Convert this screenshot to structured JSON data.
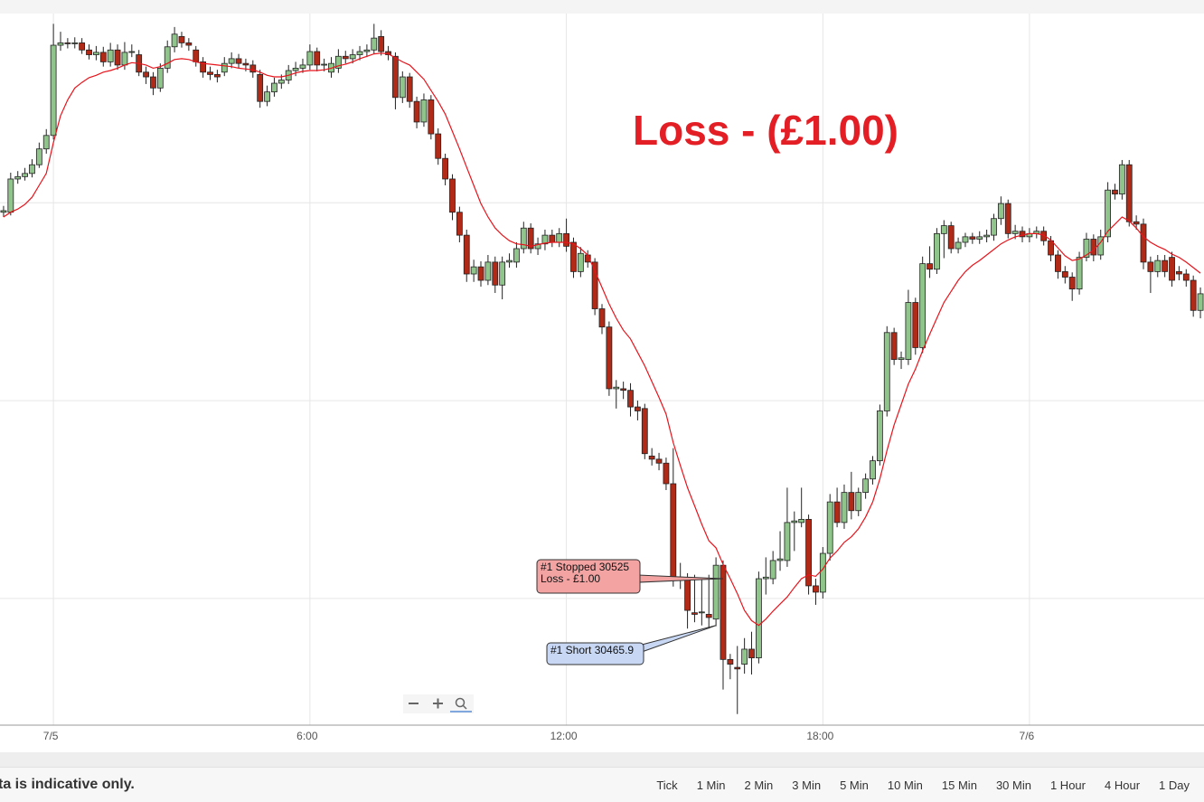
{
  "chart_data": {
    "type": "candlestick",
    "title": "Loss - (£1.00)",
    "categories": [
      null,
      null,
      null,
      null,
      null,
      null,
      null,
      "7/5",
      null,
      null,
      null,
      null,
      null,
      null,
      null,
      null,
      null,
      null,
      null,
      null,
      null,
      null,
      null,
      null,
      null,
      null,
      null,
      null,
      null,
      null,
      null,
      null,
      null,
      null,
      null,
      null,
      null,
      null,
      null,
      null,
      null,
      null,
      null,
      "6:00",
      null,
      null,
      null,
      null,
      null,
      null,
      null,
      null,
      null,
      null,
      null,
      null,
      null,
      null,
      null,
      null,
      null,
      null,
      null,
      null,
      null,
      null,
      null,
      null,
      null,
      null,
      null,
      null,
      null,
      null,
      null,
      null,
      null,
      null,
      null,
      "12:00",
      null,
      null,
      null,
      null,
      null,
      null,
      null,
      null,
      null,
      null,
      null,
      null,
      null,
      null,
      null,
      null,
      null,
      null,
      null,
      null,
      null,
      null,
      null,
      null,
      null,
      null,
      null,
      null,
      null,
      null,
      null,
      null,
      null,
      null,
      null,
      "18:00",
      null,
      null,
      null,
      null,
      null,
      null,
      null,
      null,
      null,
      null,
      null,
      null,
      null,
      null,
      null,
      null,
      null,
      null,
      null,
      null,
      null,
      null,
      null,
      null,
      null,
      null,
      null,
      null,
      "7/6",
      null,
      null,
      null,
      null,
      null,
      null,
      null,
      null,
      null,
      null,
      null,
      null,
      null,
      null,
      null,
      null,
      null,
      null,
      null,
      null,
      null,
      null,
      null,
      null
    ],
    "open": [
      30988,
      30988,
      31030,
      31033,
      31037,
      31048,
      31068,
      31085,
      31199,
      31202,
      31201,
      31202,
      31193,
      31187,
      31190,
      31178,
      31193,
      31174,
      31190,
      31187,
      31165,
      31159,
      31145,
      31170,
      31197,
      31210,
      31202,
      31193,
      31178,
      31165,
      31162,
      31165,
      31176,
      31182,
      31176,
      31174,
      31162,
      31128,
      31140,
      31151,
      31155,
      31167,
      31170,
      31174,
      31191,
      31174,
      31165,
      31170,
      31185,
      31182,
      31187,
      31191,
      31193,
      31210,
      31191,
      31185,
      31133,
      31159,
      31128,
      31102,
      31130,
      31087,
      31056,
      31030,
      30988,
      30959,
      30910,
      30919,
      30902,
      30925,
      30896,
      30925,
      30925,
      30942,
      30968,
      30942,
      30948,
      30959,
      30950,
      30961,
      30950,
      30913,
      30934,
      30925,
      30866,
      30843,
      30765,
      30765,
      30763,
      30742,
      30740,
      30680,
      30676,
      30671,
      30645,
      30525,
      30525,
      30482,
      30482,
      30480,
      30474,
      30542,
      30423,
      30413,
      30417,
      30436,
      30425,
      30525,
      30525,
      30548,
      30548,
      30596,
      30596,
      30600,
      30516,
      30508,
      30557,
      30622,
      30596,
      30634,
      30611,
      30634,
      30651,
      30674,
      30737,
      30836,
      30802,
      30802,
      30874,
      30817,
      30923,
      30916,
      30961,
      30971,
      30942,
      30950,
      30957,
      30954,
      30957,
      30959,
      30980,
      30999,
      30961,
      30964,
      30957,
      30961,
      30964,
      30952,
      30934,
      30913,
      30906,
      30891,
      30931,
      30954,
      30934,
      30957,
      31016,
      31011,
      31048,
      30976,
      30973,
      30925,
      30913,
      30927,
      30931,
      30913,
      30910,
      30902,
      30864
    ],
    "high": [
      30996,
      31038,
      31040,
      31044,
      31055,
      31076,
      31093,
      31226,
      31216,
      31208,
      31209,
      31208,
      31200,
      31198,
      31197,
      31202,
      31200,
      31203,
      31200,
      31193,
      31172,
      31165,
      31176,
      31205,
      31222,
      31216,
      31208,
      31198,
      31184,
      31172,
      31168,
      31184,
      31190,
      31188,
      31182,
      31180,
      31168,
      31148,
      31158,
      31162,
      31174,
      31178,
      31182,
      31200,
      31196,
      31182,
      31184,
      31194,
      31192,
      31194,
      31198,
      31200,
      31226,
      31218,
      31198,
      31190,
      31166,
      31164,
      31134,
      31138,
      31136,
      31094,
      31062,
      31036,
      30995,
      30966,
      30928,
      30926,
      30934,
      30932,
      30932,
      30936,
      30950,
      30976,
      30974,
      30956,
      30966,
      30966,
      30968,
      30980,
      30956,
      30944,
      30940,
      30930,
      30872,
      30850,
      30776,
      30774,
      30772,
      30750,
      30746,
      30690,
      30684,
      30678,
      30690,
      30545,
      30532,
      30530,
      30526,
      30530,
      30552,
      30548,
      30430,
      30440,
      30450,
      30458,
      30534,
      30552,
      30560,
      30585,
      30640,
      30610,
      30640,
      30606,
      30525,
      30565,
      30632,
      30640,
      30644,
      30660,
      30640,
      30658,
      30680,
      30745,
      30844,
      30842,
      30812,
      30890,
      30880,
      30932,
      30945,
      30968,
      30978,
      30976,
      30956,
      30962,
      30962,
      30964,
      30966,
      30986,
      31008,
      31004,
      30972,
      30970,
      30968,
      30970,
      30970,
      30958,
      30940,
      30920,
      30912,
      30938,
      30962,
      30960,
      30966,
      31026,
      31024,
      31054,
      31054,
      30984,
      30980,
      30932,
      30934,
      30934,
      30938,
      30920,
      30916,
      30908,
      30893
    ],
    "low": [
      30982,
      30984,
      31024,
      31028,
      31032,
      31044,
      31062,
      31080,
      31192,
      31195,
      31195,
      31188,
      31181,
      31180,
      31172,
      31172,
      31168,
      31168,
      31184,
      31160,
      31150,
      31136,
      31140,
      31164,
      31190,
      31196,
      31192,
      31172,
      31158,
      31155,
      31152,
      31160,
      31170,
      31170,
      31166,
      31158,
      31120,
      31122,
      31134,
      31144,
      31150,
      31160,
      31164,
      31168,
      31166,
      31166,
      31158,
      31164,
      31176,
      31176,
      31180,
      31184,
      31188,
      31186,
      31180,
      31118,
      31126,
      31120,
      31094,
      31096,
      31080,
      31048,
      31022,
      30978,
      30950,
      30900,
      30900,
      30894,
      30896,
      30886,
      30878,
      30918,
      30918,
      30936,
      30936,
      30934,
      30940,
      30944,
      30944,
      30938,
      30905,
      30906,
      30918,
      30858,
      30834,
      30756,
      30740,
      30752,
      30730,
      30725,
      30676,
      30668,
      30662,
      30637,
      30515,
      30512,
      30462,
      30470,
      30466,
      30462,
      30465,
      30385,
      30398,
      30354,
      30405,
      30404,
      30418,
      30505,
      30518,
      30535,
      30540,
      30560,
      30590,
      30505,
      30492,
      30500,
      30548,
      30590,
      30588,
      30600,
      30604,
      30626,
      30644,
      30668,
      30730,
      30795,
      30790,
      30795,
      30808,
      30810,
      30905,
      30910,
      30930,
      30936,
      30936,
      30944,
      30948,
      30948,
      30950,
      30952,
      30972,
      30955,
      30954,
      30950,
      30950,
      30955,
      30946,
      30926,
      30904,
      30898,
      30876,
      30884,
      30926,
      30926,
      30928,
      30950,
      31004,
      31004,
      30970,
      30966,
      30916,
      30886,
      30906,
      30906,
      30894,
      30902,
      30894,
      30856,
      30854
    ],
    "close": [
      30990,
      31030,
      31033,
      31037,
      31048,
      31068,
      31085,
      31199,
      31202,
      31201,
      31202,
      31193,
      31187,
      31190,
      31178,
      31193,
      31174,
      31190,
      31191,
      31165,
      31159,
      31145,
      31170,
      31197,
      31213,
      31202,
      31199,
      31178,
      31165,
      31162,
      31159,
      31176,
      31182,
      31176,
      31174,
      31165,
      31128,
      31140,
      31151,
      31155,
      31167,
      31170,
      31174,
      31191,
      31174,
      31175,
      31176,
      31185,
      31182,
      31187,
      31191,
      31193,
      31208,
      31191,
      31187,
      31133,
      31159,
      31128,
      31102,
      31130,
      31087,
      31056,
      31030,
      30988,
      30959,
      30910,
      30919,
      30902,
      30925,
      30896,
      30925,
      30927,
      30942,
      30968,
      30942,
      30948,
      30959,
      30950,
      30961,
      30945,
      30913,
      30936,
      30925,
      30866,
      30843,
      30765,
      30767,
      30763,
      30742,
      30737,
      30683,
      30676,
      30671,
      30645,
      30525,
      30527,
      30485,
      30480,
      30483,
      30476,
      30542,
      30423,
      30417,
      30411,
      30436,
      30425,
      30525,
      30527,
      30548,
      30550,
      30596,
      30598,
      30600,
      30516,
      30508,
      30557,
      30622,
      30596,
      30634,
      30611,
      30634,
      30651,
      30674,
      30737,
      30836,
      30802,
      30804,
      30874,
      30817,
      30923,
      30916,
      30961,
      30971,
      30942,
      30950,
      30957,
      30954,
      30957,
      30959,
      30980,
      30999,
      30961,
      30964,
      30957,
      30961,
      30964,
      30952,
      30934,
      30913,
      30906,
      30891,
      30931,
      30954,
      30934,
      30957,
      31016,
      31011,
      31048,
      30976,
      30973,
      30925,
      30913,
      30927,
      30913,
      30902,
      30910,
      30902,
      30864,
      30885
    ],
    "up_color": "#8fc48a",
    "down_color": "#b02a17",
    "moving_average": {
      "color": "#e8141c",
      "values": [
        30982,
        30988,
        30992,
        30998,
        31007,
        31022,
        31037,
        31076,
        31110,
        31130,
        31145,
        31152,
        31158,
        31161,
        31165,
        31167,
        31170,
        31174,
        31177,
        31176,
        31174,
        31170,
        31172,
        31176,
        31181,
        31182,
        31181,
        31178,
        31176,
        31175,
        31174,
        31173,
        31172,
        31170,
        31169,
        31168,
        31165,
        31161,
        31159,
        31159,
        31161,
        31164,
        31166,
        31167,
        31167,
        31168,
        31170,
        31173,
        31175,
        31178,
        31182,
        31185,
        31188,
        31189,
        31188,
        31183,
        31178,
        31174,
        31165,
        31156,
        31142,
        31128,
        31112,
        31090,
        31068,
        31045,
        31022,
        30999,
        30982,
        30968,
        30959,
        30952,
        30948,
        30947,
        30945,
        30947,
        30949,
        30950,
        30950,
        30950,
        30948,
        30942,
        30934,
        30914,
        30893,
        30872,
        30854,
        30839,
        30828,
        30811,
        30794,
        30774,
        30754,
        30733,
        30697,
        30668,
        30640,
        30617,
        30594,
        30573,
        30564,
        30543,
        30525,
        30506,
        30485,
        30472,
        30466,
        30474,
        30484,
        30493,
        30502,
        30514,
        30525,
        30530,
        30528,
        30537,
        30551,
        30560,
        30571,
        30578,
        30588,
        30603,
        30622,
        30651,
        30687,
        30719,
        30745,
        30771,
        30790,
        30813,
        30834,
        30854,
        30874,
        30888,
        30902,
        30913,
        30921,
        30927,
        30934,
        30941,
        30948,
        30953,
        30957,
        30959,
        30961,
        30961,
        30959,
        30953,
        30943,
        30933,
        30927,
        30929,
        30934,
        30940,
        30950,
        30964,
        30973,
        30982,
        30977,
        30968,
        30957,
        30950,
        30945,
        30941,
        30935,
        30931,
        30925,
        30918,
        30911
      ]
    },
    "ylim": [
      30340,
      31239
    ],
    "yticks": [
      30500,
      30750,
      31000
    ],
    "grid": true,
    "annotations": [
      {
        "lines": [
          "#1 Stopped 30525",
          "Loss - £1.00"
        ],
        "value": 30525,
        "color": "#f4a3a3"
      },
      {
        "lines": [
          "#1 Short 30465.9"
        ],
        "value": 30465.9,
        "color": "#c8d8f4"
      }
    ]
  },
  "footer": {
    "disclaimer": "ta is indicative only.",
    "timeframes": [
      "Tick",
      "1 Min",
      "2 Min",
      "3 Min",
      "5 Min",
      "10 Min",
      "15 Min",
      "30 Min",
      "1 Hour",
      "4 Hour",
      "1 Day"
    ]
  }
}
